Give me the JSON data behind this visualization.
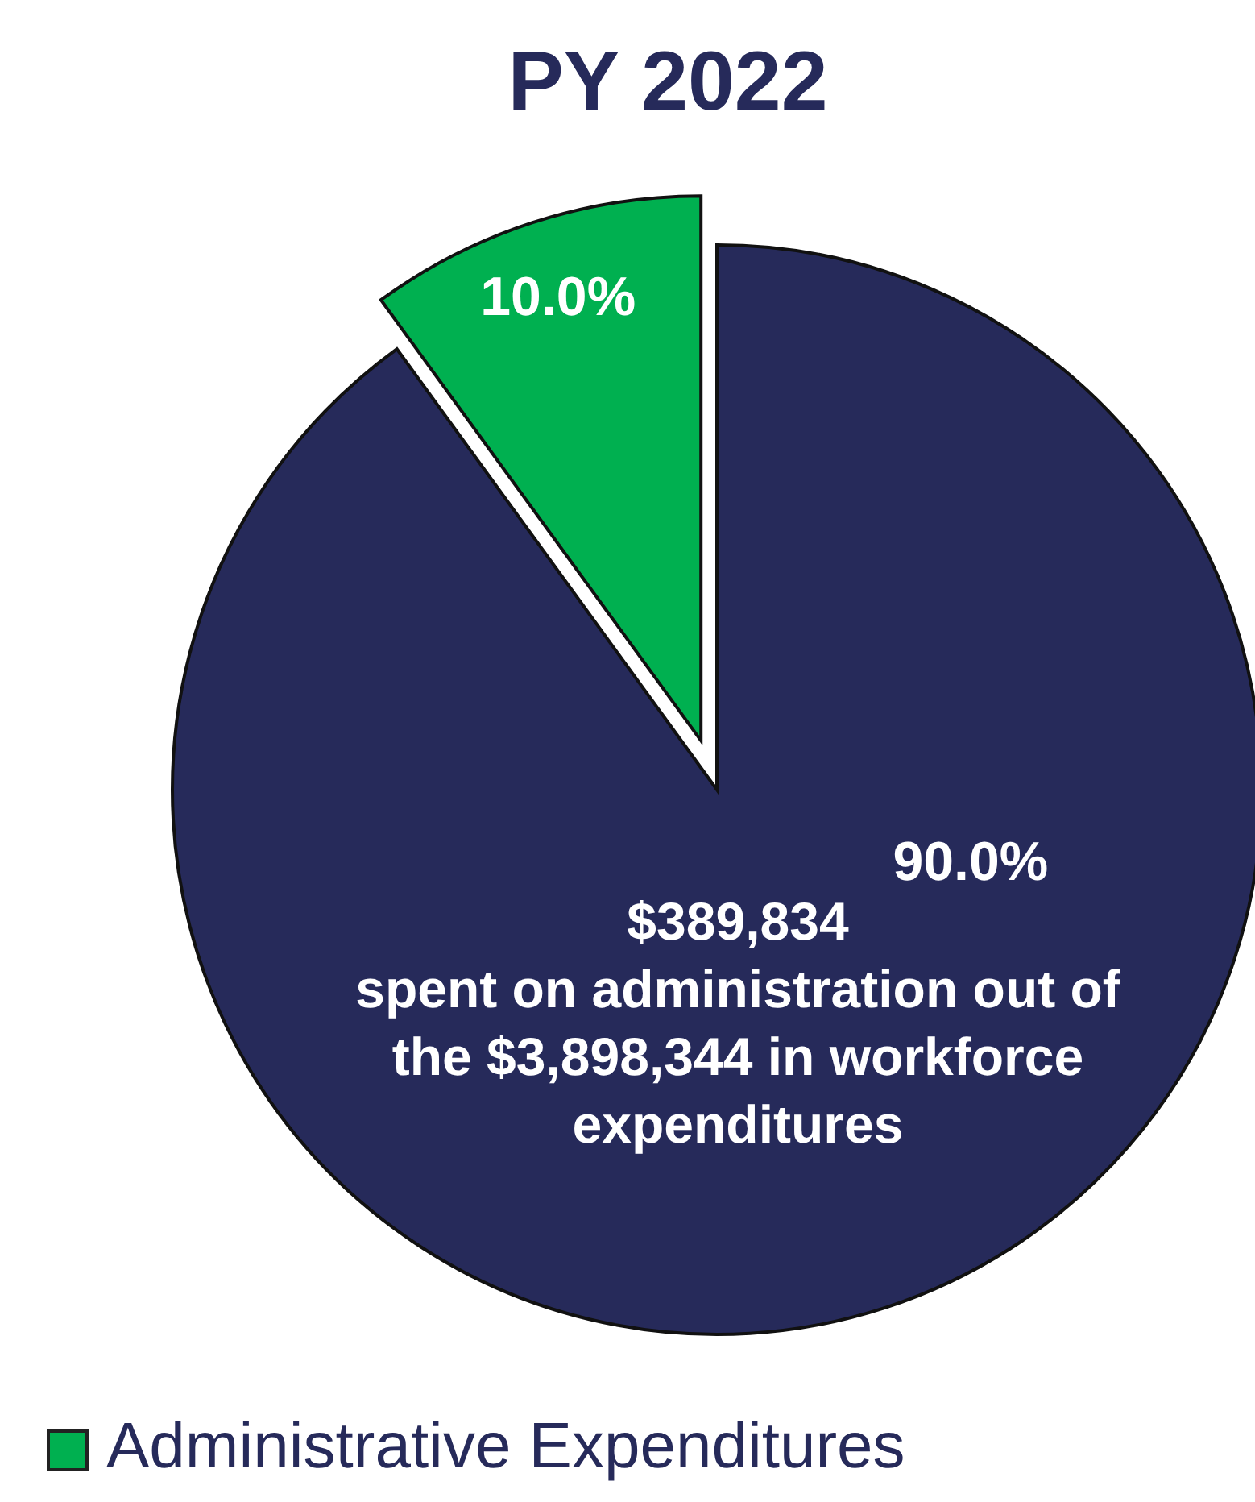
{
  "chart_data": {
    "type": "pie",
    "title": "PY 2022",
    "categories": [
      "Administrative Expenditures",
      null
    ],
    "values": [
      10,
      90
    ],
    "colors": [
      "#00b050",
      "#262a5a"
    ],
    "value_labels": [
      "10.0%",
      "90.0%"
    ],
    "annotations": [
      "$389,834\nspent on administration out of\nthe $3,898,344 in workforce\nexpenditures"
    ],
    "legend": "bottom left"
  }
}
